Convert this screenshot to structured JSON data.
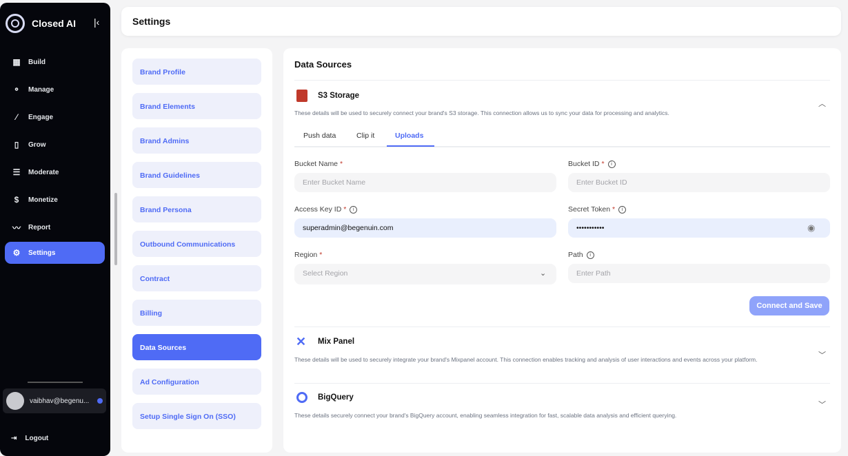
{
  "app": {
    "name": "Closed AI"
  },
  "sidebar": {
    "items": [
      {
        "label": "Build",
        "icon": "grid-icon"
      },
      {
        "label": "Manage",
        "icon": "manage-icon"
      },
      {
        "label": "Engage",
        "icon": "magic-wand-icon"
      },
      {
        "label": "Grow",
        "icon": "grow-icon"
      },
      {
        "label": "Moderate",
        "icon": "checklist-icon"
      },
      {
        "label": "Monetize",
        "icon": "dollar-icon"
      },
      {
        "label": "Report",
        "icon": "trend-icon"
      },
      {
        "label": "Settings",
        "icon": "gear-icon",
        "active": true
      }
    ],
    "user": "vaibhav@begenu...",
    "logout": "Logout"
  },
  "header": {
    "title": "Settings"
  },
  "settings_nav": [
    "Brand Profile",
    "Brand Elements",
    "Brand Admins",
    "Brand Guidelines",
    "Brand Persona",
    "Outbound Communications",
    "Contract",
    "Billing",
    "Data Sources",
    "Ad Configuration",
    "Setup Single Sign On (SSO)"
  ],
  "settings_nav_active": "Data Sources",
  "main": {
    "title": "Data Sources",
    "s3": {
      "title": "S3 Storage",
      "desc": "These details will be used to securely connect your brand's S3 storage. This connection allows us to sync your data for processing and analytics.",
      "tabs": [
        "Push data",
        "Clip it",
        "Uploads"
      ],
      "active_tab": "Uploads",
      "fields": {
        "bucket_name": {
          "label": "Bucket Name",
          "placeholder": "Enter Bucket Name"
        },
        "bucket_id": {
          "label": "Bucket ID",
          "placeholder": "Enter Bucket ID"
        },
        "access_key": {
          "label": "Access Key ID",
          "value": "superadmin@begenuin.com"
        },
        "secret": {
          "label": "Secret Token",
          "value": "•••••••••••"
        },
        "region": {
          "label": "Region",
          "placeholder": "Select Region"
        },
        "path": {
          "label": "Path",
          "placeholder": "Enter Path"
        }
      },
      "submit": "Connect and Save"
    },
    "mixpanel": {
      "title": "Mix Panel",
      "desc": "These details will be used to securely integrate your brand's Mixpanel account. This connection enables tracking and analysis of user interactions and events across your platform."
    },
    "bigquery": {
      "title": "BigQuery",
      "desc": "These details securely connect your brand's BigQuery account, enabling seamless integration for fast, scalable data analysis and efficient querying."
    }
  },
  "colors": {
    "accent": "#4f6bf5",
    "sidebar": "#05060c",
    "s3": "#c0392b"
  }
}
